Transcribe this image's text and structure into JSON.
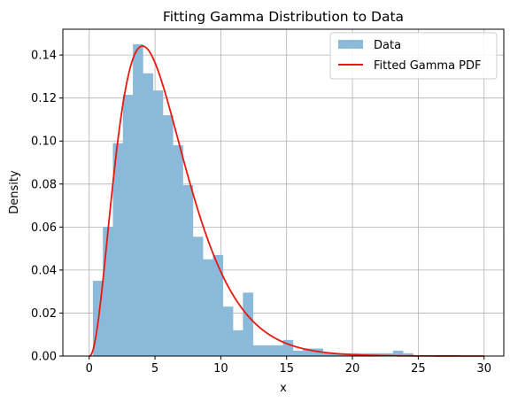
{
  "chart_data": {
    "type": "bar",
    "title": "Fitting Gamma Distribution to Data",
    "xlabel": "x",
    "ylabel": "Density",
    "xlim": [
      -2,
      31.5
    ],
    "ylim": [
      0,
      0.152
    ],
    "xticks": [
      0,
      5,
      10,
      15,
      20,
      25,
      30
    ],
    "yticks": [
      0.0,
      0.02,
      0.04,
      0.06,
      0.08,
      0.1,
      0.12,
      0.14
    ],
    "grid": true,
    "legend_position": "top-right",
    "colors": {
      "histogram": "#8ab9d9",
      "curve": "#e8190f",
      "grid": "#b0b0b0"
    },
    "series": [
      {
        "name": "Data",
        "kind": "histogram",
        "bin_width": 0.76,
        "bins": [
          {
            "x0": 0.28,
            "density": 0.035
          },
          {
            "x0": 1.04,
            "density": 0.06
          },
          {
            "x0": 1.8,
            "density": 0.099
          },
          {
            "x0": 2.56,
            "density": 0.1215
          },
          {
            "x0": 3.32,
            "density": 0.145
          },
          {
            "x0": 4.08,
            "density": 0.1315
          },
          {
            "x0": 4.84,
            "density": 0.1235
          },
          {
            "x0": 5.6,
            "density": 0.112
          },
          {
            "x0": 6.36,
            "density": 0.098
          },
          {
            "x0": 7.12,
            "density": 0.0795
          },
          {
            "x0": 7.88,
            "density": 0.0555
          },
          {
            "x0": 8.64,
            "density": 0.045
          },
          {
            "x0": 9.4,
            "density": 0.047
          },
          {
            "x0": 10.16,
            "density": 0.023
          },
          {
            "x0": 10.92,
            "density": 0.012
          },
          {
            "x0": 11.68,
            "density": 0.0295
          },
          {
            "x0": 12.44,
            "density": 0.005
          },
          {
            "x0": 13.2,
            "density": 0.005
          },
          {
            "x0": 13.96,
            "density": 0.005
          },
          {
            "x0": 14.72,
            "density": 0.0075
          },
          {
            "x0": 15.48,
            "density": 0.0025
          },
          {
            "x0": 16.24,
            "density": 0.0035
          },
          {
            "x0": 17.0,
            "density": 0.0035
          },
          {
            "x0": 17.76,
            "density": 0.0013
          },
          {
            "x0": 18.52,
            "density": 0.0013
          },
          {
            "x0": 19.28,
            "density": 0.0013
          },
          {
            "x0": 20.04,
            "density": 0.0013
          },
          {
            "x0": 20.8,
            "density": 0.0013
          },
          {
            "x0": 21.56,
            "density": 0.0013
          },
          {
            "x0": 22.32,
            "density": 0.0013
          },
          {
            "x0": 23.08,
            "density": 0.0025
          },
          {
            "x0": 23.84,
            "density": 0.0013
          }
        ]
      },
      {
        "name": "Fitted Gamma PDF",
        "kind": "line",
        "distribution": "gamma",
        "shape": 3.3,
        "scale": 1.76,
        "x_range": [
          0,
          30
        ]
      }
    ]
  }
}
